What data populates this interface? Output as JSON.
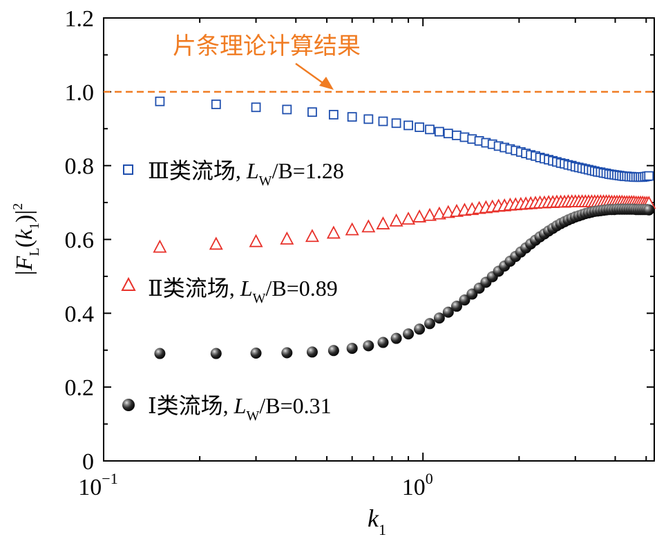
{
  "chart_data": {
    "type": "scatter",
    "x_scale": "log",
    "xlim": [
      0.1,
      5.3
    ],
    "ylim": [
      0,
      1.2
    ],
    "xlabel_var": "k",
    "xlabel_sub": "1",
    "ylabel": "|F_L(k_1)|^2",
    "x_ticks": [
      {
        "base": "10",
        "exp": "−1",
        "value": 0.1
      },
      {
        "base": "10",
        "exp": "0",
        "value": 1
      }
    ],
    "y_ticks": [
      "0",
      "0.2",
      "0.4",
      "0.6",
      "0.8",
      "1.0",
      "1.2"
    ],
    "grid": false,
    "reference_line": {
      "y": 1.0,
      "label": "片条理论计算结果",
      "color": "#f07c23"
    },
    "series": [
      {
        "name": "Ⅲ类流场, L_W/B=1.28",
        "legend_prefix": "Ⅲ类流场, ",
        "legend_L": "L",
        "legend_sub": "W",
        "legend_rest": "/B=1.28",
        "marker": "square",
        "color": "#1f4fae",
        "x": [
          0.15,
          0.225,
          0.3,
          0.375,
          0.45,
          0.525,
          0.6,
          0.675,
          0.75,
          0.825,
          0.9,
          0.975,
          1.05,
          1.125,
          1.2,
          1.275,
          1.35,
          1.425,
          1.5,
          1.575,
          1.65,
          1.725,
          1.8,
          1.875,
          1.95,
          2.025,
          2.1,
          2.175,
          2.25,
          2.325,
          2.4,
          2.475,
          2.55,
          2.625,
          2.7,
          2.775,
          2.85,
          2.925,
          3.0,
          3.075,
          3.15,
          3.225,
          3.3,
          3.375,
          3.45,
          3.525,
          3.6,
          3.675,
          3.75,
          3.825,
          3.9,
          3.975,
          4.05,
          4.125,
          4.2,
          4.275,
          4.35,
          4.425,
          4.5,
          4.575,
          4.65,
          4.725,
          4.8,
          4.875,
          4.95,
          5.025,
          5.1
        ],
        "y": [
          0.974,
          0.966,
          0.958,
          0.952,
          0.945,
          0.938,
          0.932,
          0.926,
          0.92,
          0.915,
          0.909,
          0.904,
          0.898,
          0.892,
          0.887,
          0.882,
          0.877,
          0.872,
          0.867,
          0.862,
          0.858,
          0.853,
          0.849,
          0.845,
          0.841,
          0.837,
          0.833,
          0.829,
          0.826,
          0.822,
          0.819,
          0.816,
          0.813,
          0.81,
          0.807,
          0.805,
          0.802,
          0.8,
          0.797,
          0.795,
          0.793,
          0.791,
          0.789,
          0.787,
          0.785,
          0.783,
          0.782,
          0.78,
          0.779,
          0.777,
          0.776,
          0.775,
          0.774,
          0.773,
          0.772,
          0.771,
          0.771,
          0.77,
          0.77,
          0.769,
          0.769,
          0.769,
          0.769,
          0.769,
          0.77,
          0.771,
          0.772
        ]
      },
      {
        "name": "Ⅱ类流场, L_W/B=0.89",
        "legend_prefix": "Ⅱ类流场, ",
        "legend_L": "L",
        "legend_sub": "W",
        "legend_rest": "/B=0.89",
        "marker": "triangle",
        "color": "#e8312a",
        "x": [
          0.15,
          0.225,
          0.3,
          0.375,
          0.45,
          0.525,
          0.6,
          0.675,
          0.75,
          0.825,
          0.9,
          0.975,
          1.05,
          1.125,
          1.2,
          1.275,
          1.35,
          1.425,
          1.5,
          1.575,
          1.65,
          1.725,
          1.8,
          1.875,
          1.95,
          2.025,
          2.1,
          2.175,
          2.25,
          2.325,
          2.4,
          2.475,
          2.55,
          2.625,
          2.7,
          2.775,
          2.85,
          2.925,
          3.0,
          3.075,
          3.15,
          3.225,
          3.3,
          3.375,
          3.45,
          3.525,
          3.6,
          3.675,
          3.75,
          3.825,
          3.9,
          3.975,
          4.05,
          4.125,
          4.2,
          4.275,
          4.35,
          4.425,
          4.5,
          4.575,
          4.65,
          4.725,
          4.8,
          4.875,
          4.95,
          5.025,
          5.1
        ],
        "y": [
          0.579,
          0.587,
          0.594,
          0.601,
          0.608,
          0.617,
          0.626,
          0.634,
          0.642,
          0.65,
          0.655,
          0.661,
          0.665,
          0.669,
          0.673,
          0.676,
          0.679,
          0.681,
          0.684,
          0.686,
          0.688,
          0.69,
          0.691,
          0.693,
          0.694,
          0.695,
          0.696,
          0.697,
          0.698,
          0.699,
          0.699,
          0.7,
          0.7,
          0.701,
          0.701,
          0.701,
          0.702,
          0.702,
          0.702,
          0.702,
          0.702,
          0.702,
          0.702,
          0.702,
          0.702,
          0.702,
          0.702,
          0.702,
          0.702,
          0.702,
          0.701,
          0.701,
          0.701,
          0.701,
          0.701,
          0.7,
          0.7,
          0.7,
          0.7,
          0.7,
          0.699,
          0.699,
          0.699,
          0.699,
          0.698,
          0.698,
          0.698
        ]
      },
      {
        "name": "Ⅰ类流场, L_W/B=0.31",
        "legend_prefix": "Ⅰ类流场, ",
        "legend_L": "L",
        "legend_sub": "W",
        "legend_rest": "/B=0.31",
        "marker": "sphere",
        "color": "#111111",
        "x": [
          0.15,
          0.225,
          0.3,
          0.375,
          0.45,
          0.525,
          0.6,
          0.675,
          0.75,
          0.825,
          0.9,
          0.975,
          1.05,
          1.125,
          1.2,
          1.275,
          1.35,
          1.425,
          1.5,
          1.575,
          1.65,
          1.725,
          1.8,
          1.875,
          1.95,
          2.025,
          2.1,
          2.175,
          2.25,
          2.325,
          2.4,
          2.475,
          2.55,
          2.625,
          2.7,
          2.775,
          2.85,
          2.925,
          3.0,
          3.075,
          3.15,
          3.225,
          3.3,
          3.375,
          3.45,
          3.525,
          3.6,
          3.675,
          3.75,
          3.825,
          3.9,
          3.975,
          4.05,
          4.125,
          4.2,
          4.275,
          4.35,
          4.425,
          4.5,
          4.575,
          4.65,
          4.725,
          4.8,
          4.875,
          4.95,
          5.025,
          5.1
        ],
        "y": [
          0.291,
          0.291,
          0.292,
          0.293,
          0.295,
          0.299,
          0.305,
          0.312,
          0.321,
          0.332,
          0.344,
          0.357,
          0.372,
          0.387,
          0.403,
          0.419,
          0.436,
          0.452,
          0.468,
          0.484,
          0.499,
          0.514,
          0.528,
          0.541,
          0.554,
          0.566,
          0.577,
          0.588,
          0.598,
          0.607,
          0.615,
          0.623,
          0.63,
          0.637,
          0.643,
          0.648,
          0.653,
          0.657,
          0.661,
          0.664,
          0.667,
          0.67,
          0.672,
          0.674,
          0.676,
          0.677,
          0.678,
          0.679,
          0.68,
          0.681,
          0.681,
          0.681,
          0.682,
          0.682,
          0.682,
          0.682,
          0.682,
          0.682,
          0.682,
          0.682,
          0.681,
          0.681,
          0.681,
          0.681,
          0.681,
          0.681,
          0.68
        ]
      }
    ]
  }
}
